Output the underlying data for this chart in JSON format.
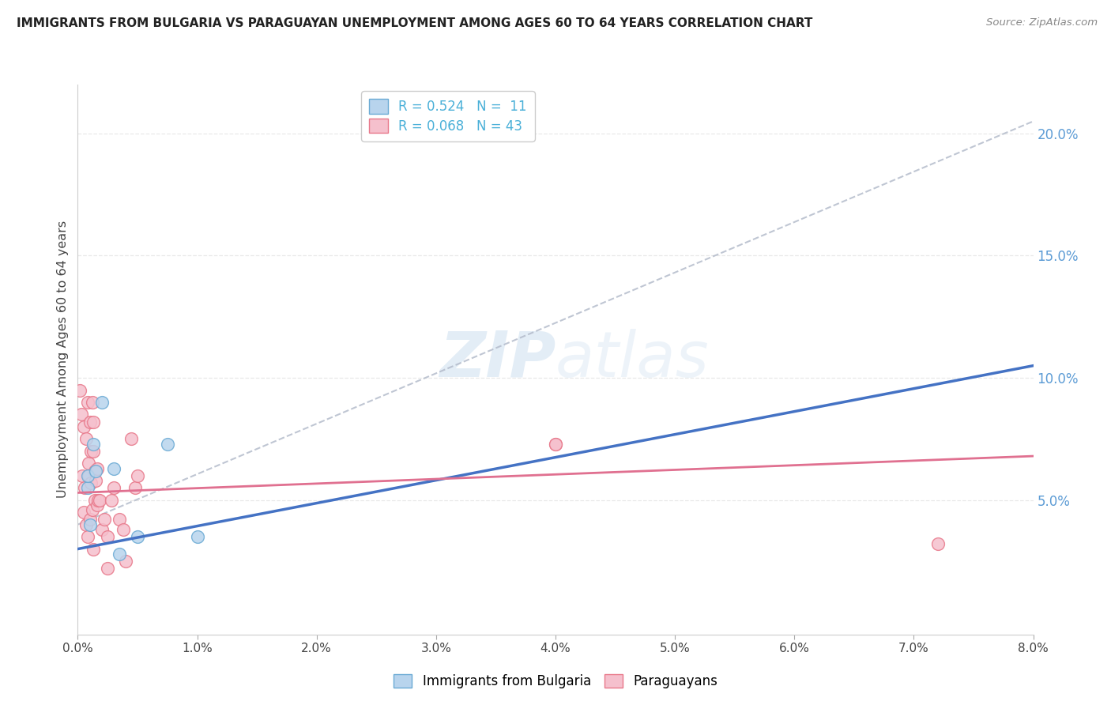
{
  "title": "IMMIGRANTS FROM BULGARIA VS PARAGUAYAN UNEMPLOYMENT AMONG AGES 60 TO 64 YEARS CORRELATION CHART",
  "source": "Source: ZipAtlas.com",
  "ylabel": "Unemployment Among Ages 60 to 64 years",
  "right_yticks": [
    "5.0%",
    "10.0%",
    "15.0%",
    "20.0%"
  ],
  "right_ytick_vals": [
    0.05,
    0.1,
    0.15,
    0.2
  ],
  "legend_line1": "R = 0.524   N =  11",
  "legend_line2": "R = 0.068   N = 43",
  "legend_labels": [
    "Immigrants from Bulgaria",
    "Paraguayans"
  ],
  "watermark_zip": "ZIP",
  "watermark_atlas": "atlas",
  "bulgaria_x": [
    0.0008,
    0.0008,
    0.001,
    0.0013,
    0.0015,
    0.002,
    0.003,
    0.0035,
    0.005,
    0.0075,
    0.01
  ],
  "bulgaria_y": [
    0.055,
    0.06,
    0.04,
    0.073,
    0.062,
    0.09,
    0.063,
    0.028,
    0.035,
    0.073,
    0.035
  ],
  "paraguay_x": [
    0.0002,
    0.0003,
    0.0004,
    0.0005,
    0.0005,
    0.0006,
    0.0007,
    0.0007,
    0.0008,
    0.0008,
    0.0009,
    0.0009,
    0.001,
    0.001,
    0.0011,
    0.0011,
    0.0012,
    0.0012,
    0.0013,
    0.0013,
    0.0013,
    0.0014,
    0.0014,
    0.0015,
    0.0016,
    0.0016,
    0.0017,
    0.0018,
    0.002,
    0.0022,
    0.0025,
    0.0028,
    0.003,
    0.0035,
    0.0038,
    0.004,
    0.0045,
    0.0048,
    0.005,
    0.04,
    0.04,
    0.072,
    0.0025
  ],
  "paraguay_y": [
    0.095,
    0.085,
    0.06,
    0.08,
    0.045,
    0.055,
    0.075,
    0.04,
    0.09,
    0.035,
    0.065,
    0.06,
    0.082,
    0.042,
    0.07,
    0.057,
    0.09,
    0.046,
    0.082,
    0.07,
    0.03,
    0.062,
    0.05,
    0.058,
    0.063,
    0.048,
    0.05,
    0.05,
    0.038,
    0.042,
    0.035,
    0.05,
    0.055,
    0.042,
    0.038,
    0.025,
    0.075,
    0.055,
    0.06,
    0.073,
    0.073,
    0.032,
    0.022
  ],
  "xlim": [
    0,
    0.08
  ],
  "ylim": [
    -0.005,
    0.22
  ],
  "blue_line_x": [
    0,
    0.08
  ],
  "blue_line_y": [
    0.03,
    0.105
  ],
  "pink_line_x": [
    0,
    0.08
  ],
  "pink_line_y": [
    0.053,
    0.068
  ],
  "dash_line_x": [
    0,
    0.08
  ],
  "dash_line_y": [
    0.04,
    0.205
  ],
  "scatter_blue_color": "#b8d4ed",
  "scatter_blue_edge": "#6aaad4",
  "scatter_pink_color": "#f5c0cd",
  "scatter_pink_edge": "#e8788a",
  "trend_blue_color": "#4472c4",
  "trend_pink_color": "#e07090",
  "grid_color": "#e8e8e8",
  "background_color": "#ffffff",
  "xtick_vals": [
    0,
    0.01,
    0.02,
    0.03,
    0.04,
    0.05,
    0.06,
    0.07,
    0.08
  ],
  "xtick_labels": [
    "0.0%",
    "1.0%",
    "2.0%",
    "3.0%",
    "4.0%",
    "5.0%",
    "6.0%",
    "7.0%",
    "8.0%"
  ]
}
